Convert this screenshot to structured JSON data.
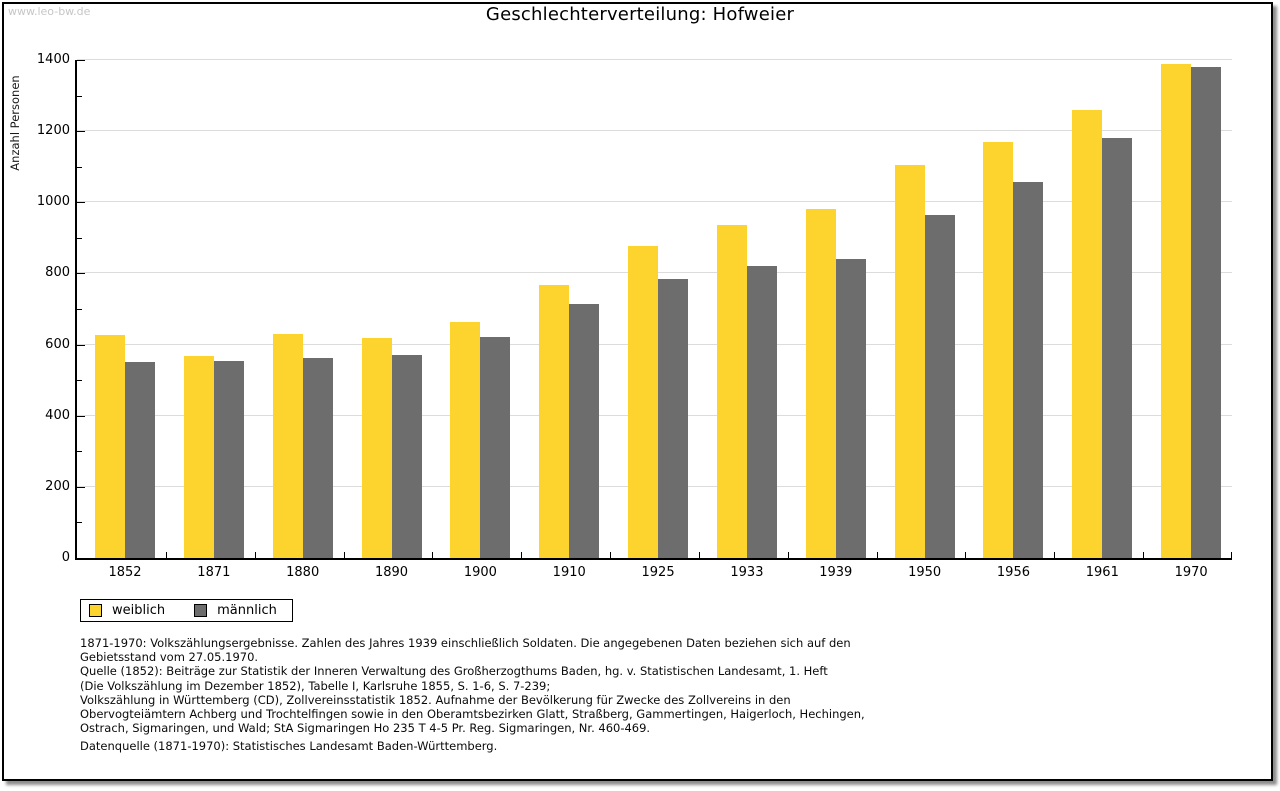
{
  "page": {
    "watermark": "www.leo-bw.de",
    "title": "Geschlechterverteilung: Hofweier"
  },
  "chart_data": {
    "type": "bar",
    "title": "Geschlechterverteilung: Hofweier",
    "xlabel": "",
    "ylabel": "Anzahl Personen",
    "ylim": [
      0,
      1400
    ],
    "ytick_major_step": 200,
    "ytick_minor_step": 100,
    "grid": true,
    "legend_position": "bottom-left",
    "categories": [
      "1852",
      "1871",
      "1880",
      "1890",
      "1900",
      "1910",
      "1925",
      "1933",
      "1939",
      "1950",
      "1956",
      "1961",
      "1970"
    ],
    "series": [
      {
        "name": "weiblich",
        "color": "#fdd32d",
        "values": [
          628,
          568,
          629,
          618,
          663,
          767,
          877,
          937,
          980,
          1104,
          1170,
          1259,
          1390
        ]
      },
      {
        "name": "männlich",
        "color": "#6d6d6d",
        "values": [
          552,
          553,
          562,
          571,
          622,
          714,
          784,
          821,
          842,
          963,
          1058,
          1181,
          1380
        ]
      }
    ]
  },
  "legend": {
    "items": [
      {
        "label": "weiblich",
        "color": "#fdd32d"
      },
      {
        "label": "männlich",
        "color": "#6d6d6d"
      }
    ]
  },
  "footnotes": {
    "lines": [
      "1871-1970: Volkszählungsergebnisse. Zahlen des Jahres 1939 einschließlich Soldaten. Die angegebenen Daten beziehen sich auf den",
      "Gebietsstand vom 27.05.1970.",
      "Quelle (1852): Beiträge zur Statistik der Inneren Verwaltung des Großherzogthums Baden, hg. v. Statistischen Landesamt, 1. Heft",
      "(Die Volkszählung im Dezember 1852), Tabelle I, Karlsruhe 1855, S. 1-6, S. 7-239;",
      "Volkszählung in Württemberg (CD), Zollvereinsstatistik 1852. Aufnahme der Bevölkerung für Zwecke des Zollvereins in den",
      "Obervogteiämtern Achberg und Trochtelfingen sowie in den Oberamtsbezirken Glatt, Straßberg, Gammertingen, Haigerloch, Hechingen,",
      "Ostrach, Sigmaringen, und Wald; StA Sigmaringen Ho 235 T 4-5 Pr. Reg. Sigmaringen, Nr. 460-469."
    ],
    "datasource": "Datenquelle (1871-1970): Statistisches Landesamt Baden-Württemberg."
  }
}
